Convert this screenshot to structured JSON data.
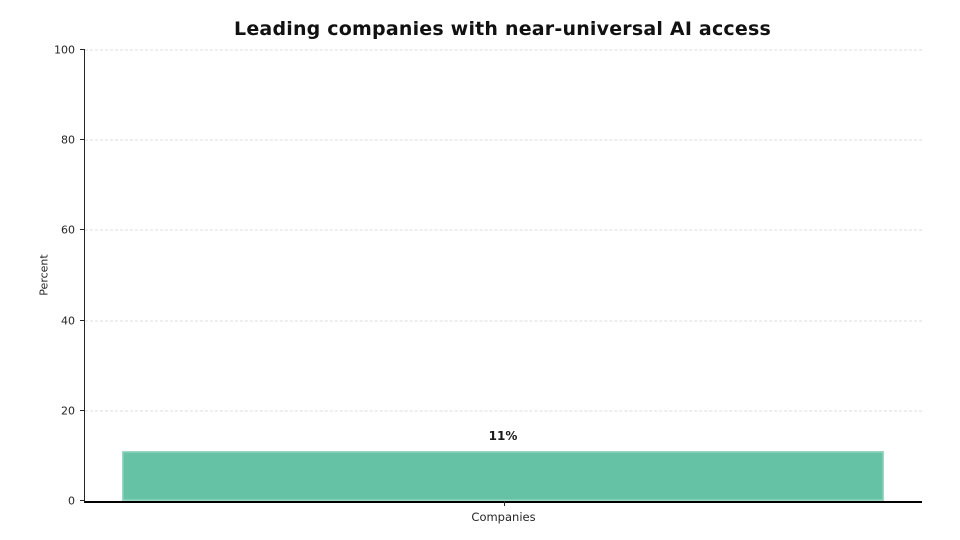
{
  "chart_data": {
    "type": "bar",
    "title": "Leading companies with near-universal AI access",
    "categories": [
      "Companies"
    ],
    "values": [
      11
    ],
    "data_labels": [
      "11%"
    ],
    "xlabel": "",
    "ylabel": "Percent",
    "ylim": [
      0,
      100
    ],
    "yticks": [
      0,
      20,
      40,
      60,
      80,
      100
    ],
    "grid": "horizontal-dashed",
    "legend": "none",
    "bar_color": "#66c2a5",
    "grid_color": "#dcdcdc",
    "spine_color": "#262626",
    "text_color": "#1a1a1a"
  }
}
